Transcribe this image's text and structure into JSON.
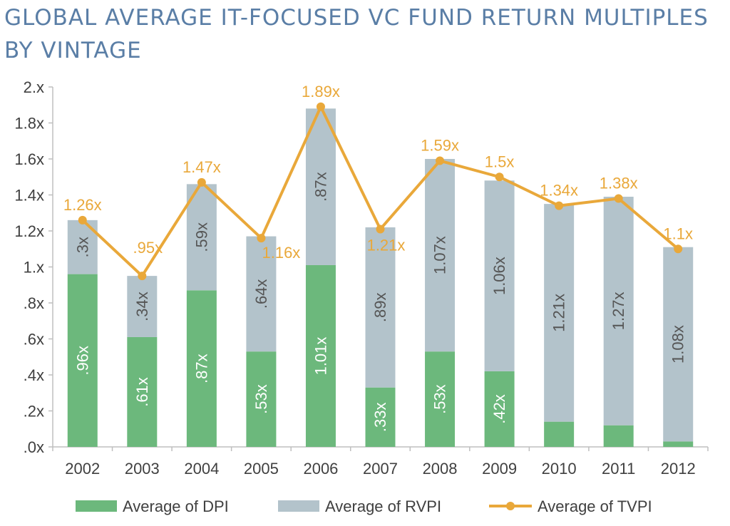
{
  "chart_data": {
    "type": "bar",
    "title": "GLOBAL AVERAGE IT-FOCUSED VC FUND RETURN MULTIPLES BY VINTAGE",
    "categories": [
      "2002",
      "2003",
      "2004",
      "2005",
      "2006",
      "2007",
      "2008",
      "2009",
      "2010",
      "2011",
      "2012"
    ],
    "stacked": true,
    "ylim": [
      0,
      2
    ],
    "yticks": [
      ".0x",
      ".2x",
      ".4x",
      ".6x",
      ".8x",
      "1.x",
      "1.2x",
      "1.4x",
      "1.6x",
      "1.8x",
      "2.x"
    ],
    "grid": false,
    "legend_position": "bottom",
    "series": [
      {
        "name": "Average of DPI",
        "kind": "bar",
        "color": "#6cb87c",
        "values": [
          0.96,
          0.61,
          0.87,
          0.53,
          1.01,
          0.33,
          0.53,
          0.42,
          0.14,
          0.12,
          0.03
        ],
        "labels": [
          ".96x",
          ".61x",
          ".87x",
          ".53x",
          "1.01x",
          ".33x",
          ".53x",
          ".42x",
          "",
          "",
          ""
        ]
      },
      {
        "name": "Average of RVPI",
        "kind": "bar",
        "color": "#b3c3cb",
        "values": [
          0.3,
          0.34,
          0.59,
          0.64,
          0.87,
          0.89,
          1.07,
          1.06,
          1.21,
          1.27,
          1.08
        ],
        "labels": [
          ".3x",
          ".34x",
          ".59x",
          ".64x",
          ".87x",
          ".89x",
          "1.07x",
          "1.06x",
          "1.21x",
          "1.27x",
          "1.08x"
        ]
      },
      {
        "name": "Average of TVPI",
        "kind": "line",
        "color": "#e9a83a",
        "values": [
          1.26,
          0.95,
          1.47,
          1.16,
          1.89,
          1.21,
          1.59,
          1.5,
          1.34,
          1.38,
          1.1
        ],
        "labels": [
          "1.26x",
          ".95x",
          "1.47x",
          "1.16x",
          "1.89x",
          "1.21x",
          "1.59x",
          "1.5x",
          "1.34x",
          "1.38x",
          "1.1x"
        ]
      }
    ]
  }
}
